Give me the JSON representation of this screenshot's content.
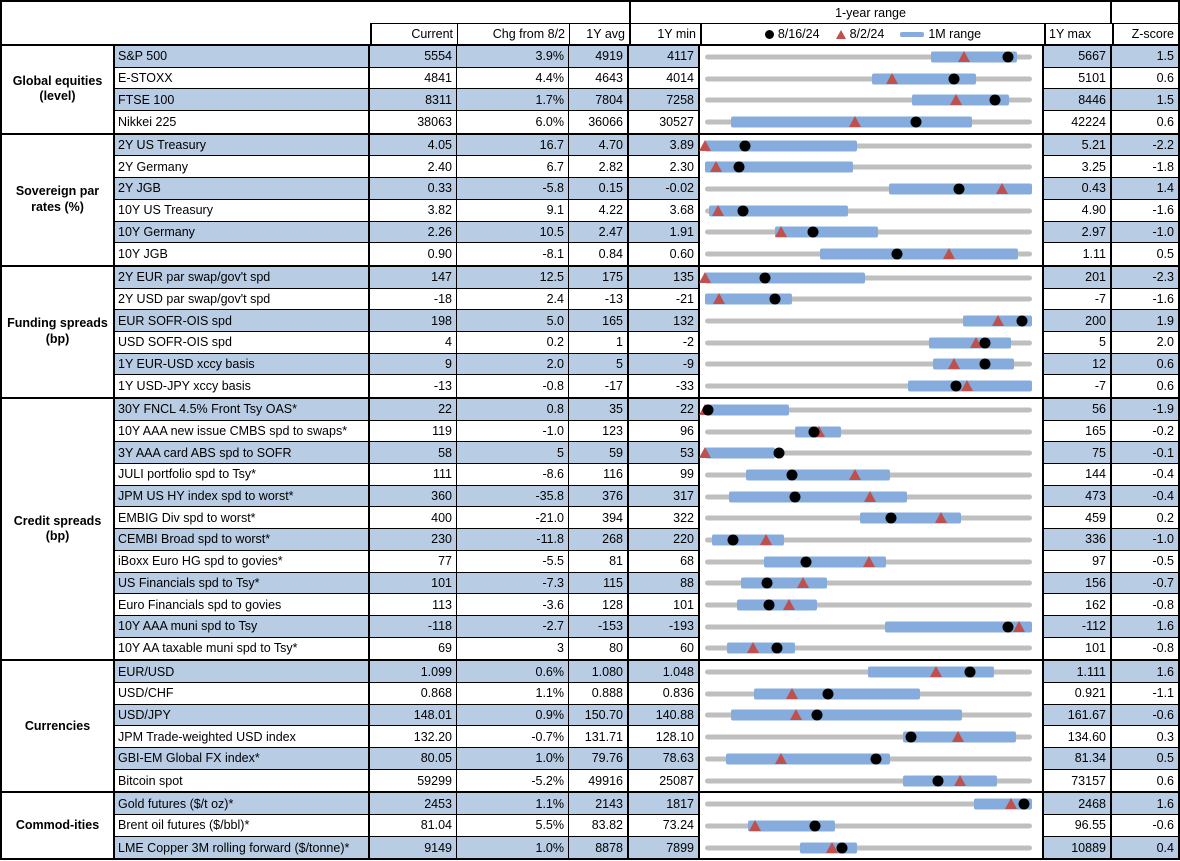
{
  "colors": {
    "row_shade": "#B8CCE4",
    "bar_blue": "#85ACDC",
    "track_gray": "#BFBFBF",
    "triangle_red": "#C0504D",
    "dot_black": "#000000"
  },
  "chart_data": {
    "type": "table",
    "title": "1-year range",
    "columns": {
      "current": "Current",
      "chg": "Chg from 8/2",
      "avg": "1Y avg",
      "min": "1Y min",
      "max": "1Y max",
      "z": "Z-score"
    },
    "legend": [
      {
        "marker": "black-dot",
        "label": "8/16/24"
      },
      {
        "marker": "red-triangle",
        "label": "8/2/24"
      },
      {
        "marker": "blue-bar",
        "label": "1M range"
      }
    ],
    "sections": [
      {
        "category": "Global equities (level)",
        "rows": [
          {
            "name": "S&P 500",
            "current": "5554",
            "chg": "3.9%",
            "avg": "4919",
            "min": "4117",
            "max": "5667",
            "z": "1.5",
            "bar": [
              0.69,
              0.955
            ],
            "dot": 0.927,
            "tri": 0.793
          },
          {
            "name": "E-STOXX",
            "current": "4841",
            "chg": "4.4%",
            "avg": "4643",
            "min": "4014",
            "max": "5101",
            "z": "0.6",
            "bar": [
              0.51,
              0.83
            ],
            "dot": 0.761,
            "tri": 0.573
          },
          {
            "name": "FTSE 100",
            "current": "8311",
            "chg": "1.7%",
            "avg": "7804",
            "min": "7258",
            "max": "8446",
            "z": "1.5",
            "bar": [
              0.633,
              0.93
            ],
            "dot": 0.886,
            "tri": 0.769
          },
          {
            "name": "Nikkei 225",
            "current": "38063",
            "chg": "6.0%",
            "avg": "36066",
            "min": "30527",
            "max": "42224",
            "z": "0.6",
            "bar": [
              0.078,
              0.817
            ],
            "dot": 0.644,
            "tri": 0.46
          }
        ]
      },
      {
        "category": "Sovereign par rates (%)",
        "rows": [
          {
            "name": "2Y US Treasury",
            "current": "4.05",
            "chg": "16.7",
            "avg": "4.70",
            "min": "3.89",
            "max": "5.21",
            "z": "-2.2",
            "bar": [
              0.0,
              0.466
            ],
            "dot": 0.121,
            "tri": 0.0
          },
          {
            "name": "2Y Germany",
            "current": "2.40",
            "chg": "6.7",
            "avg": "2.82",
            "min": "2.30",
            "max": "3.25",
            "z": "-1.8",
            "bar": [
              0.0,
              0.453
            ],
            "dot": 0.105,
            "tri": 0.035
          },
          {
            "name": "2Y JGB",
            "current": "0.33",
            "chg": "-5.8",
            "avg": "0.15",
            "min": "-0.02",
            "max": "0.43",
            "z": "1.4",
            "bar": [
              0.563,
              1.0
            ],
            "dot": 0.778,
            "tri": 0.907
          },
          {
            "name": "10Y US Treasury",
            "current": "3.82",
            "chg": "9.1",
            "avg": "4.22",
            "min": "3.68",
            "max": "4.90",
            "z": "-1.6",
            "bar": [
              0.013,
              0.436
            ],
            "dot": 0.115,
            "tri": 0.04
          },
          {
            "name": "10Y Germany",
            "current": "2.26",
            "chg": "10.5",
            "avg": "2.47",
            "min": "1.91",
            "max": "2.97",
            "z": "-1.0",
            "bar": [
              0.213,
              0.529
            ],
            "dot": 0.33,
            "tri": 0.231
          },
          {
            "name": "10Y JGB",
            "current": "0.90",
            "chg": "-8.1",
            "avg": "0.84",
            "min": "0.60",
            "max": "1.11",
            "z": "0.5",
            "bar": [
              0.353,
              0.957
            ],
            "dot": 0.588,
            "tri": 0.747
          }
        ]
      },
      {
        "category": "Funding spreads (bp)",
        "rows": [
          {
            "name": "2Y EUR par swap/gov't spd",
            "current": "147",
            "chg": "12.5",
            "avg": "175",
            "min": "135",
            "max": "201",
            "z": "-2.3",
            "bar": [
              0.0,
              0.488
            ],
            "dot": 0.182,
            "tri": 0.0
          },
          {
            "name": "2Y USD par swap/gov't spd",
            "current": "-18",
            "chg": "2.4",
            "avg": "-13",
            "min": "-21",
            "max": "-7",
            "z": "-1.6",
            "bar": [
              0.0,
              0.266
            ],
            "dot": 0.214,
            "tri": 0.043
          },
          {
            "name": "EUR SOFR-OIS spd",
            "current": "198",
            "chg": "5.0",
            "avg": "165",
            "min": "132",
            "max": "200",
            "z": "1.9",
            "bar": [
              0.79,
              1.0
            ],
            "dot": 0.97,
            "tri": 0.897
          },
          {
            "name": "USD SOFR-OIS spd",
            "current": "4",
            "chg": "0.2",
            "avg": "1",
            "min": "-2",
            "max": "5",
            "z": "2.0",
            "bar": [
              0.684,
              0.935
            ],
            "dot": 0.857,
            "tri": 0.829
          },
          {
            "name": "1Y EUR-USD xccy basis",
            "current": "9",
            "chg": "2.0",
            "avg": "5",
            "min": "-9",
            "max": "12",
            "z": "0.6",
            "bar": [
              0.698,
              0.946
            ],
            "dot": 0.857,
            "tri": 0.762
          },
          {
            "name": "1Y USD-JPY xccy basis",
            "current": "-13",
            "chg": "-0.8",
            "avg": "-17",
            "min": "-33",
            "max": "-7",
            "z": "0.6",
            "bar": [
              0.622,
              1.0
            ],
            "dot": 0.769,
            "tri": 0.8
          }
        ]
      },
      {
        "category": "Credit spreads (bp)",
        "rows": [
          {
            "name": "30Y FNCL 4.5% Front Tsy OAS*",
            "current": "22",
            "chg": "0.8",
            "avg": "35",
            "min": "22",
            "max": "56",
            "z": "-1.9",
            "bar": [
              0.0,
              0.258
            ],
            "dot": 0.01,
            "tri": 0.0
          },
          {
            "name": "10Y AAA new issue CMBS spd to swaps*",
            "current": "119",
            "chg": "-1.0",
            "avg": "123",
            "min": "96",
            "max": "165",
            "z": "-0.2",
            "bar": [
              0.275,
              0.417
            ],
            "dot": 0.333,
            "tri": 0.348
          },
          {
            "name": "3Y AAA card ABS spd to SOFR",
            "current": "58",
            "chg": "5",
            "avg": "59",
            "min": "53",
            "max": "75",
            "z": "-0.1",
            "bar": [
              0.0,
              0.213
            ],
            "dot": 0.227,
            "tri": 0.0
          },
          {
            "name": "JULI portfolio spd to Tsy*",
            "current": "111",
            "chg": "-8.6",
            "avg": "116",
            "min": "99",
            "max": "144",
            "z": "-0.4",
            "bar": [
              0.126,
              0.565
            ],
            "dot": 0.267,
            "tri": 0.458
          },
          {
            "name": "JPM US HY index spd to worst*",
            "current": "360",
            "chg": "-35.8",
            "avg": "376",
            "min": "317",
            "max": "473",
            "z": "-0.4",
            "bar": [
              0.072,
              0.617
            ],
            "dot": 0.276,
            "tri": 0.505
          },
          {
            "name": "EMBIG Div spd to worst*",
            "current": "400",
            "chg": "-21.0",
            "avg": "394",
            "min": "322",
            "max": "459",
            "z": "0.2",
            "bar": [
              0.475,
              0.784
            ],
            "dot": 0.569,
            "tri": 0.723
          },
          {
            "name": "CEMBI Broad spd to worst*",
            "current": "230",
            "chg": "-11.8",
            "avg": "268",
            "min": "220",
            "max": "336",
            "z": "-1.0",
            "bar": [
              0.022,
              0.243
            ],
            "dot": 0.086,
            "tri": 0.188
          },
          {
            "name": "iBoxx Euro HG spd to govies*",
            "current": "77",
            "chg": "-5.5",
            "avg": "81",
            "min": "68",
            "max": "97",
            "z": "-0.5",
            "bar": [
              0.18,
              0.552
            ],
            "dot": 0.31,
            "tri": 0.5
          },
          {
            "name": "US Financials spd to Tsy*",
            "current": "101",
            "chg": "-7.3",
            "avg": "115",
            "min": "88",
            "max": "156",
            "z": "-0.7",
            "bar": [
              0.11,
              0.374
            ],
            "dot": 0.191,
            "tri": 0.299
          },
          {
            "name": "Euro Financials spd to govies",
            "current": "113",
            "chg": "-3.6",
            "avg": "128",
            "min": "101",
            "max": "162",
            "z": "-0.8",
            "bar": [
              0.097,
              0.344
            ],
            "dot": 0.197,
            "tri": 0.256
          },
          {
            "name": "10Y AAA muni spd to Tsy",
            "current": "-118",
            "chg": "-2.7",
            "avg": "-153",
            "min": "-193",
            "max": "-112",
            "z": "1.6",
            "bar": [
              0.549,
              1.0
            ],
            "dot": 0.926,
            "tri": 0.959
          },
          {
            "name": "10Y AA taxable muni spd to Tsy*",
            "current": "69",
            "chg": "3",
            "avg": "80",
            "min": "60",
            "max": "101",
            "z": "-0.8",
            "bar": [
              0.067,
              0.275
            ],
            "dot": 0.22,
            "tri": 0.146
          }
        ]
      },
      {
        "category": "Currencies",
        "rows": [
          {
            "name": "EUR/USD",
            "current": "1.099",
            "chg": "0.6%",
            "avg": "1.080",
            "min": "1.048",
            "max": "1.111",
            "z": "1.6",
            "bar": [
              0.498,
              0.885
            ],
            "dot": 0.81,
            "tri": 0.705
          },
          {
            "name": "USD/CHF",
            "current": "0.868",
            "chg": "1.1%",
            "avg": "0.888",
            "min": "0.836",
            "max": "0.921",
            "z": "-1.1",
            "bar": [
              0.151,
              0.658
            ],
            "dot": 0.376,
            "tri": 0.266
          },
          {
            "name": "USD/JPY",
            "current": "148.01",
            "chg": "0.9%",
            "avg": "150.70",
            "min": "140.88",
            "max": "161.67",
            "z": "-0.6",
            "bar": [
              0.078,
              0.787
            ],
            "dot": 0.343,
            "tri": 0.279
          },
          {
            "name": "JPM Trade-weighted USD index",
            "current": "132.20",
            "chg": "-0.7%",
            "avg": "131.71",
            "min": "128.10",
            "max": "134.60",
            "z": "0.3",
            "bar": [
              0.606,
              0.951
            ],
            "dot": 0.631,
            "tri": 0.774
          },
          {
            "name": "GBI-EM Global FX index*",
            "current": "80.05",
            "chg": "1.0%",
            "avg": "79.76",
            "min": "78.63",
            "max": "81.34",
            "z": "0.5",
            "bar": [
              0.065,
              0.565
            ],
            "dot": 0.524,
            "tri": 0.233
          },
          {
            "name": "Bitcoin spot",
            "current": "59299",
            "chg": "-5.2%",
            "avg": "49916",
            "min": "25087",
            "max": "73157",
            "z": "0.6",
            "bar": [
              0.606,
              0.892
            ],
            "dot": 0.712,
            "tri": 0.779
          }
        ]
      },
      {
        "category": "Commod-ities",
        "rows": [
          {
            "name": "Gold futures ($/t oz)*",
            "current": "2453",
            "chg": "1.1%",
            "avg": "2143",
            "min": "1817",
            "max": "2468",
            "z": "1.6",
            "bar": [
              0.822,
              1.0
            ],
            "dot": 0.977,
            "tri": 0.936
          },
          {
            "name": "Brent oil futures ($/bbl)*",
            "current": "81.04",
            "chg": "5.5%",
            "avg": "83.82",
            "min": "73.24",
            "max": "96.55",
            "z": "-0.6",
            "bar": [
              0.132,
              0.399
            ],
            "dot": 0.335,
            "tri": 0.154
          },
          {
            "name": "LME Copper 3M rolling forward ($/tonne)*",
            "current": "9149",
            "chg": "1.0%",
            "avg": "8878",
            "min": "7899",
            "max": "10889",
            "z": "0.4",
            "bar": [
              0.29,
              0.466
            ],
            "dot": 0.418,
            "tri": 0.388
          }
        ]
      }
    ]
  }
}
